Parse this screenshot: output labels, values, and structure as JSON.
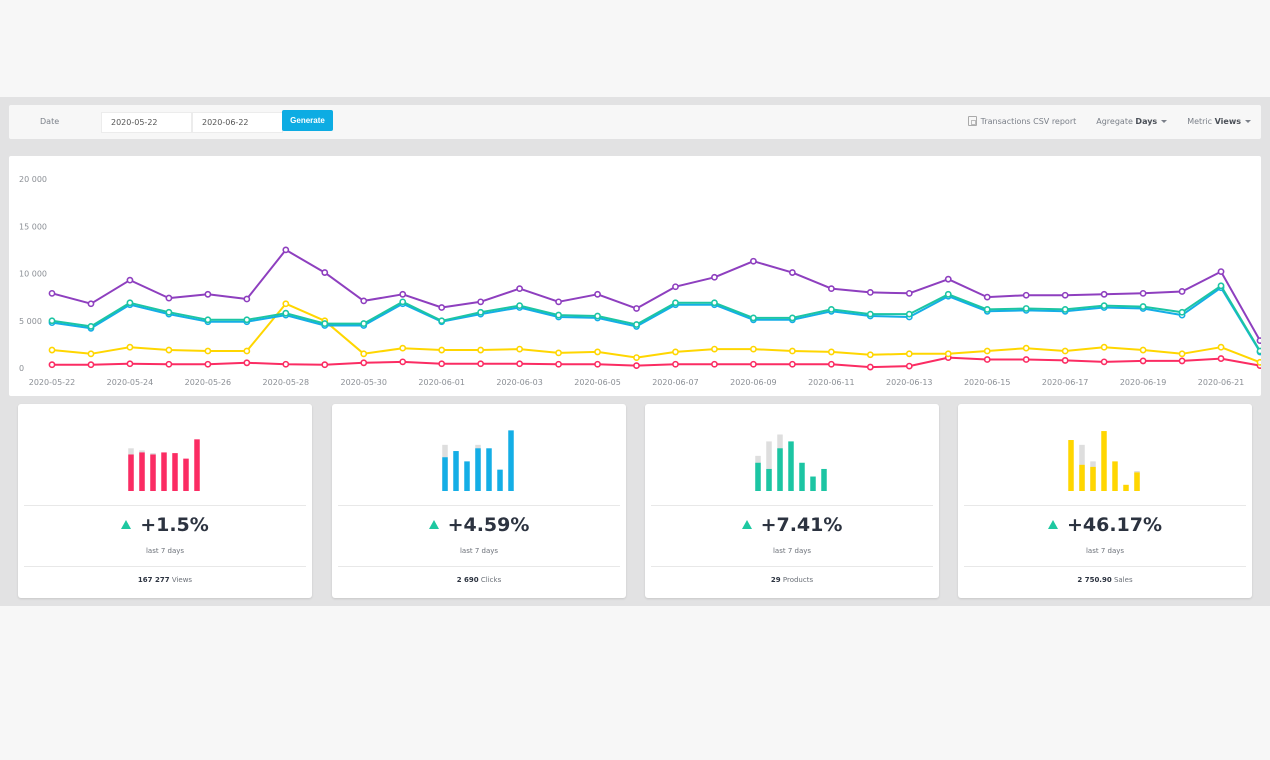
{
  "toolbar": {
    "date_label": "Date",
    "date_from": "2020-05-22",
    "date_to": "2020-06-22",
    "generate_label": "Generate",
    "csv_icon": "document-icon",
    "csv_label": "Transactions CSV report",
    "aggregate_label": "Agregate",
    "aggregate_value": "Days",
    "metric_label": "Metric",
    "metric_value": "Views"
  },
  "chart_data": [
    {
      "type": "line",
      "title": "",
      "xlabel": "",
      "ylabel": "",
      "ylim": [
        0,
        20000
      ],
      "yticks": [
        0,
        5000,
        10000,
        15000,
        20000
      ],
      "ytick_labels": [
        "0",
        "5 000",
        "10 000",
        "15 000",
        "20 000"
      ],
      "grid": false,
      "legend": "none",
      "x": [
        "2020-05-22",
        "2020-05-23",
        "2020-05-24",
        "2020-05-25",
        "2020-05-26",
        "2020-05-27",
        "2020-05-28",
        "2020-05-29",
        "2020-05-30",
        "2020-05-31",
        "2020-06-01",
        "2020-06-02",
        "2020-06-03",
        "2020-06-04",
        "2020-06-05",
        "2020-06-06",
        "2020-06-07",
        "2020-06-08",
        "2020-06-09",
        "2020-06-10",
        "2020-06-11",
        "2020-06-12",
        "2020-06-13",
        "2020-06-14",
        "2020-06-15",
        "2020-06-16",
        "2020-06-17",
        "2020-06-18",
        "2020-06-19",
        "2020-06-20",
        "2020-06-21",
        "2020-06-22"
      ],
      "xtick_labels": [
        "2020-05-22",
        "2020-05-24",
        "2020-05-26",
        "2020-05-28",
        "2020-05-30",
        "2020-06-01",
        "2020-06-03",
        "2020-06-05",
        "2020-06-07",
        "2020-06-09",
        "2020-06-11",
        "2020-06-13",
        "2020-06-15",
        "2020-06-17",
        "2020-06-19",
        "2020-06-21"
      ],
      "series": [
        {
          "name": "purple",
          "color": "#8e3fbf",
          "values": [
            7900,
            6800,
            9300,
            7400,
            7800,
            7300,
            12500,
            10100,
            7100,
            7800,
            6400,
            7000,
            8400,
            7000,
            7800,
            6300,
            8600,
            9600,
            11300,
            10100,
            8400,
            8000,
            7900,
            9400,
            7500,
            7700,
            7700,
            7800,
            7900,
            8100,
            10200,
            2900
          ]
        },
        {
          "name": "teal",
          "color": "#1cc5a3",
          "values": [
            5000,
            4400,
            6900,
            5900,
            5100,
            5100,
            5800,
            4700,
            4700,
            7000,
            5000,
            5900,
            6600,
            5600,
            5500,
            4600,
            6900,
            6900,
            5300,
            5300,
            6200,
            5700,
            5700,
            7800,
            6200,
            6300,
            6200,
            6600,
            6500,
            5900,
            8700,
            1800
          ]
        },
        {
          "name": "blue",
          "color": "#14aee6",
          "values": [
            4800,
            4200,
            6700,
            5700,
            4900,
            4900,
            5600,
            4500,
            4500,
            6800,
            4900,
            5700,
            6400,
            5400,
            5300,
            4400,
            6700,
            6700,
            5100,
            5100,
            6000,
            5500,
            5400,
            7600,
            6000,
            6100,
            6000,
            6400,
            6300,
            5600,
            8500,
            1700
          ]
        },
        {
          "name": "yellow",
          "color": "#ffd600",
          "values": [
            1900,
            1500,
            2200,
            1900,
            1800,
            1800,
            6800,
            5000,
            1500,
            2100,
            1900,
            1900,
            2000,
            1600,
            1700,
            1100,
            1700,
            2000,
            2000,
            1800,
            1700,
            1400,
            1500,
            1500,
            1800,
            2100,
            1800,
            2200,
            1900,
            1500,
            2200,
            600
          ]
        },
        {
          "name": "red",
          "color": "#fb2c63",
          "values": [
            350,
            350,
            450,
            400,
            400,
            550,
            400,
            350,
            550,
            650,
            450,
            450,
            450,
            400,
            400,
            250,
            400,
            400,
            400,
            400,
            400,
            100,
            200,
            1100,
            900,
            900,
            800,
            650,
            750,
            750,
            1000,
            250
          ]
        }
      ]
    },
    {
      "type": "bar",
      "title": "Views",
      "color": "#fb2c63",
      "categories": [
        "1",
        "2",
        "3",
        "4",
        "5",
        "6",
        "7"
      ],
      "series": [
        {
          "name": "current",
          "values": [
            53,
            56,
            53,
            56,
            55,
            47,
            75
          ]
        },
        {
          "name": "previous",
          "values": [
            62,
            59,
            55,
            56,
            55,
            47,
            75
          ]
        }
      ]
    },
    {
      "type": "bar",
      "title": "Clicks",
      "color": "#14aee6",
      "categories": [
        "1",
        "2",
        "3",
        "4",
        "5",
        "6",
        "7"
      ],
      "series": [
        {
          "name": "current",
          "values": [
            49,
            58,
            43,
            62,
            62,
            31,
            88
          ]
        },
        {
          "name": "previous",
          "values": [
            67,
            58,
            43,
            67,
            62,
            31,
            88
          ]
        }
      ]
    },
    {
      "type": "bar",
      "title": "Products",
      "color": "#1cc5a3",
      "categories": [
        "1",
        "2",
        "3",
        "4",
        "5",
        "6",
        "7"
      ],
      "series": [
        {
          "name": "current",
          "values": [
            41,
            32,
            62,
            72,
            41,
            21,
            32
          ]
        },
        {
          "name": "previous",
          "values": [
            51,
            72,
            82,
            72,
            41,
            21,
            32
          ]
        }
      ]
    },
    {
      "type": "bar",
      "title": "Sales",
      "color": "#ffd600",
      "categories": [
        "1",
        "2",
        "3",
        "4",
        "5",
        "6",
        "7"
      ],
      "series": [
        {
          "name": "current",
          "values": [
            74,
            38,
            35,
            87,
            43,
            9,
            27
          ]
        },
        {
          "name": "previous",
          "values": [
            74,
            67,
            43,
            87,
            43,
            9,
            29
          ]
        }
      ]
    }
  ],
  "cards": [
    {
      "change": "+1.5%",
      "period": "last 7 days",
      "total": "167 277",
      "unit": "Views",
      "trend_icon": "triangle-up-icon"
    },
    {
      "change": "+4.59%",
      "period": "last 7 days",
      "total": "2 690",
      "unit": "Clicks",
      "trend_icon": "triangle-up-icon"
    },
    {
      "change": "+7.41%",
      "period": "last 7 days",
      "total": "29",
      "unit": "Products",
      "trend_icon": "triangle-up-icon"
    },
    {
      "change": "+46.17%",
      "period": "last 7 days",
      "total": "2 750.90",
      "unit": "Sales",
      "trend_icon": "triangle-up-icon"
    }
  ],
  "colors": {
    "accent": "#0dace3",
    "up": "#1ec8a1",
    "bar_previous": "#dedede"
  }
}
